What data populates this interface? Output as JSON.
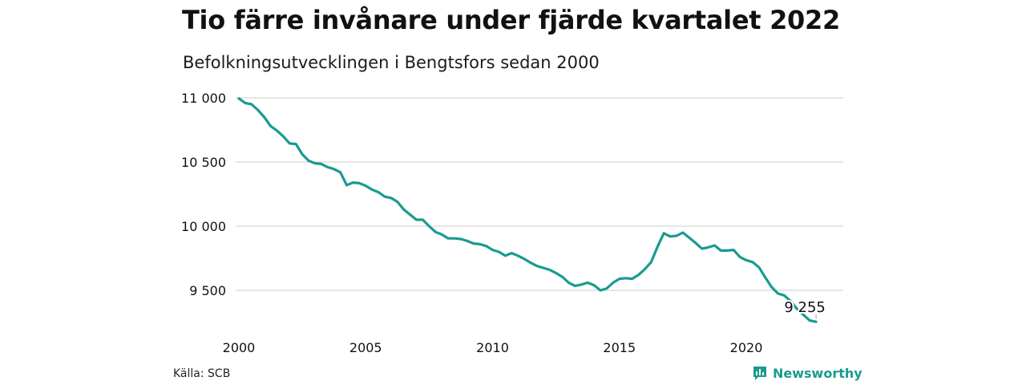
{
  "header": {
    "title": "Tio färre invånare under fjärde kvartalet 2022",
    "subtitle": "Befolkningsutvecklingen i Bengtsfors sedan 2000"
  },
  "footer": {
    "source": "Källa: SCB",
    "brand": "Newsworthy",
    "brand_icon": "bar-chart-icon"
  },
  "colors": {
    "line": "#1a9b8f",
    "grid": "#dddddd",
    "text": "#111111"
  },
  "chart_data": {
    "type": "line",
    "title": "Tio färre invånare under fjärde kvartalet 2022",
    "subtitle": "Befolkningsutvecklingen i Bengtsfors sedan 2000",
    "xlabel": "",
    "ylabel": "",
    "xlim": [
      2000,
      2023
    ],
    "ylim": [
      9200,
      11050
    ],
    "x_ticks": [
      2000,
      2005,
      2010,
      2015,
      2020
    ],
    "x_tick_labels": [
      "2000",
      "2005",
      "2010",
      "2015",
      "2020"
    ],
    "y_ticks": [
      9500,
      10000,
      10500,
      11000
    ],
    "y_tick_labels": [
      "9 500",
      "10 000",
      "10 500",
      "11 000"
    ],
    "grid": "horizontal",
    "end_label": "9 255",
    "series": [
      {
        "x": [
          2000.0,
          2000.25,
          2000.5,
          2000.75,
          2001.0,
          2001.25,
          2001.5,
          2001.75,
          2002.0,
          2002.25,
          2002.5,
          2002.75,
          2003.0,
          2003.25,
          2003.5,
          2003.75,
          2004.0,
          2004.25,
          2004.5,
          2004.75,
          2005.0,
          2005.25,
          2005.5,
          2005.75,
          2006.0,
          2006.25,
          2006.5,
          2006.75,
          2007.0,
          2007.25,
          2007.5,
          2007.75,
          2008.0,
          2008.25,
          2008.5,
          2008.75,
          2009.0,
          2009.25,
          2009.5,
          2009.75,
          2010.0,
          2010.25,
          2010.5,
          2010.75,
          2011.0,
          2011.25,
          2011.5,
          2011.75,
          2012.0,
          2012.25,
          2012.5,
          2012.75,
          2013.0,
          2013.25,
          2013.5,
          2013.75,
          2014.0,
          2014.25,
          2014.5,
          2014.75,
          2015.0,
          2015.25,
          2015.5,
          2015.75,
          2016.0,
          2016.25,
          2016.5,
          2016.75,
          2017.0,
          2017.25,
          2017.5,
          2017.75,
          2018.0,
          2018.25,
          2018.5,
          2018.75,
          2019.0,
          2019.25,
          2019.5,
          2019.75,
          2020.0,
          2020.25,
          2020.5,
          2020.75,
          2021.0,
          2021.25,
          2021.5,
          2021.75,
          2022.0,
          2022.25,
          2022.5,
          2022.75
        ],
        "y": [
          10995,
          10960,
          10950,
          10905,
          10850,
          10780,
          10745,
          10700,
          10645,
          10640,
          10560,
          10510,
          10490,
          10485,
          10460,
          10445,
          10420,
          10320,
          10340,
          10335,
          10315,
          10285,
          10265,
          10230,
          10220,
          10190,
          10130,
          10090,
          10050,
          10050,
          10000,
          9955,
          9935,
          9905,
          9905,
          9900,
          9885,
          9865,
          9860,
          9845,
          9815,
          9800,
          9770,
          9790,
          9770,
          9745,
          9715,
          9690,
          9675,
          9660,
          9635,
          9605,
          9560,
          9535,
          9545,
          9560,
          9540,
          9500,
          9515,
          9560,
          9590,
          9595,
          9590,
          9620,
          9665,
          9720,
          9840,
          9945,
          9920,
          9925,
          9950,
          9910,
          9870,
          9825,
          9835,
          9850,
          9810,
          9810,
          9815,
          9760,
          9735,
          9720,
          9680,
          9600,
          9525,
          9475,
          9460,
          9415,
          9355,
          9310,
          9265,
          9255
        ]
      }
    ]
  }
}
